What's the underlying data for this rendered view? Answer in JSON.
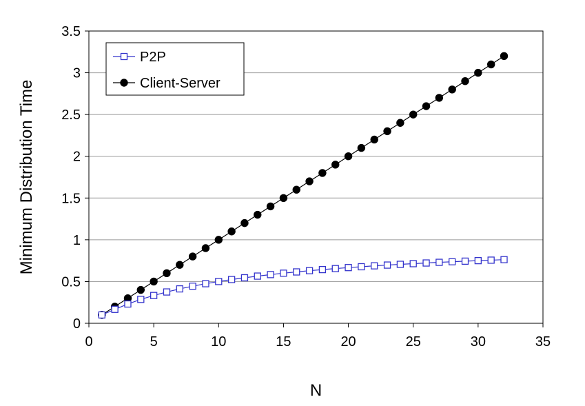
{
  "chart_data": {
    "type": "line",
    "title": "",
    "xlabel": "N",
    "ylabel": "Minimum Distribution Time",
    "xlim": [
      0,
      35
    ],
    "ylim": [
      0,
      3.5
    ],
    "xticks": [
      0,
      5,
      10,
      15,
      20,
      25,
      30,
      35
    ],
    "yticks": [
      0,
      0.5,
      1,
      1.5,
      2,
      2.5,
      3,
      3.5
    ],
    "xtick_labels": [
      "0",
      "5",
      "10",
      "15",
      "20",
      "25",
      "30",
      "35"
    ],
    "ytick_labels": [
      "0",
      "0.5",
      "1",
      "1.5",
      "2",
      "2.5",
      "3",
      "3.5"
    ],
    "grid": "horizontal",
    "legend_position": "top-left",
    "x": [
      1,
      2,
      3,
      4,
      5,
      6,
      7,
      8,
      9,
      10,
      11,
      12,
      13,
      14,
      15,
      16,
      17,
      18,
      19,
      20,
      21,
      22,
      23,
      24,
      25,
      26,
      27,
      28,
      29,
      30,
      31,
      32
    ],
    "series": [
      {
        "name": "P2P",
        "marker": "open-square",
        "color": "#3333cc",
        "values": [
          0.1,
          0.167,
          0.231,
          0.286,
          0.333,
          0.375,
          0.412,
          0.444,
          0.474,
          0.5,
          0.524,
          0.545,
          0.565,
          0.583,
          0.6,
          0.615,
          0.63,
          0.643,
          0.655,
          0.667,
          0.677,
          0.688,
          0.697,
          0.706,
          0.714,
          0.722,
          0.73,
          0.737,
          0.744,
          0.75,
          0.756,
          0.762
        ]
      },
      {
        "name": "Client-Server",
        "marker": "filled-circle",
        "color": "#000000",
        "values": [
          0.1,
          0.2,
          0.3,
          0.4,
          0.5,
          0.6,
          0.7,
          0.8,
          0.9,
          1.0,
          1.1,
          1.2,
          1.3,
          1.4,
          1.5,
          1.6,
          1.7,
          1.8,
          1.9,
          2.0,
          2.1,
          2.2,
          2.3,
          2.4,
          2.5,
          2.6,
          2.7,
          2.8,
          2.9,
          3.0,
          3.1,
          3.2
        ]
      }
    ]
  }
}
